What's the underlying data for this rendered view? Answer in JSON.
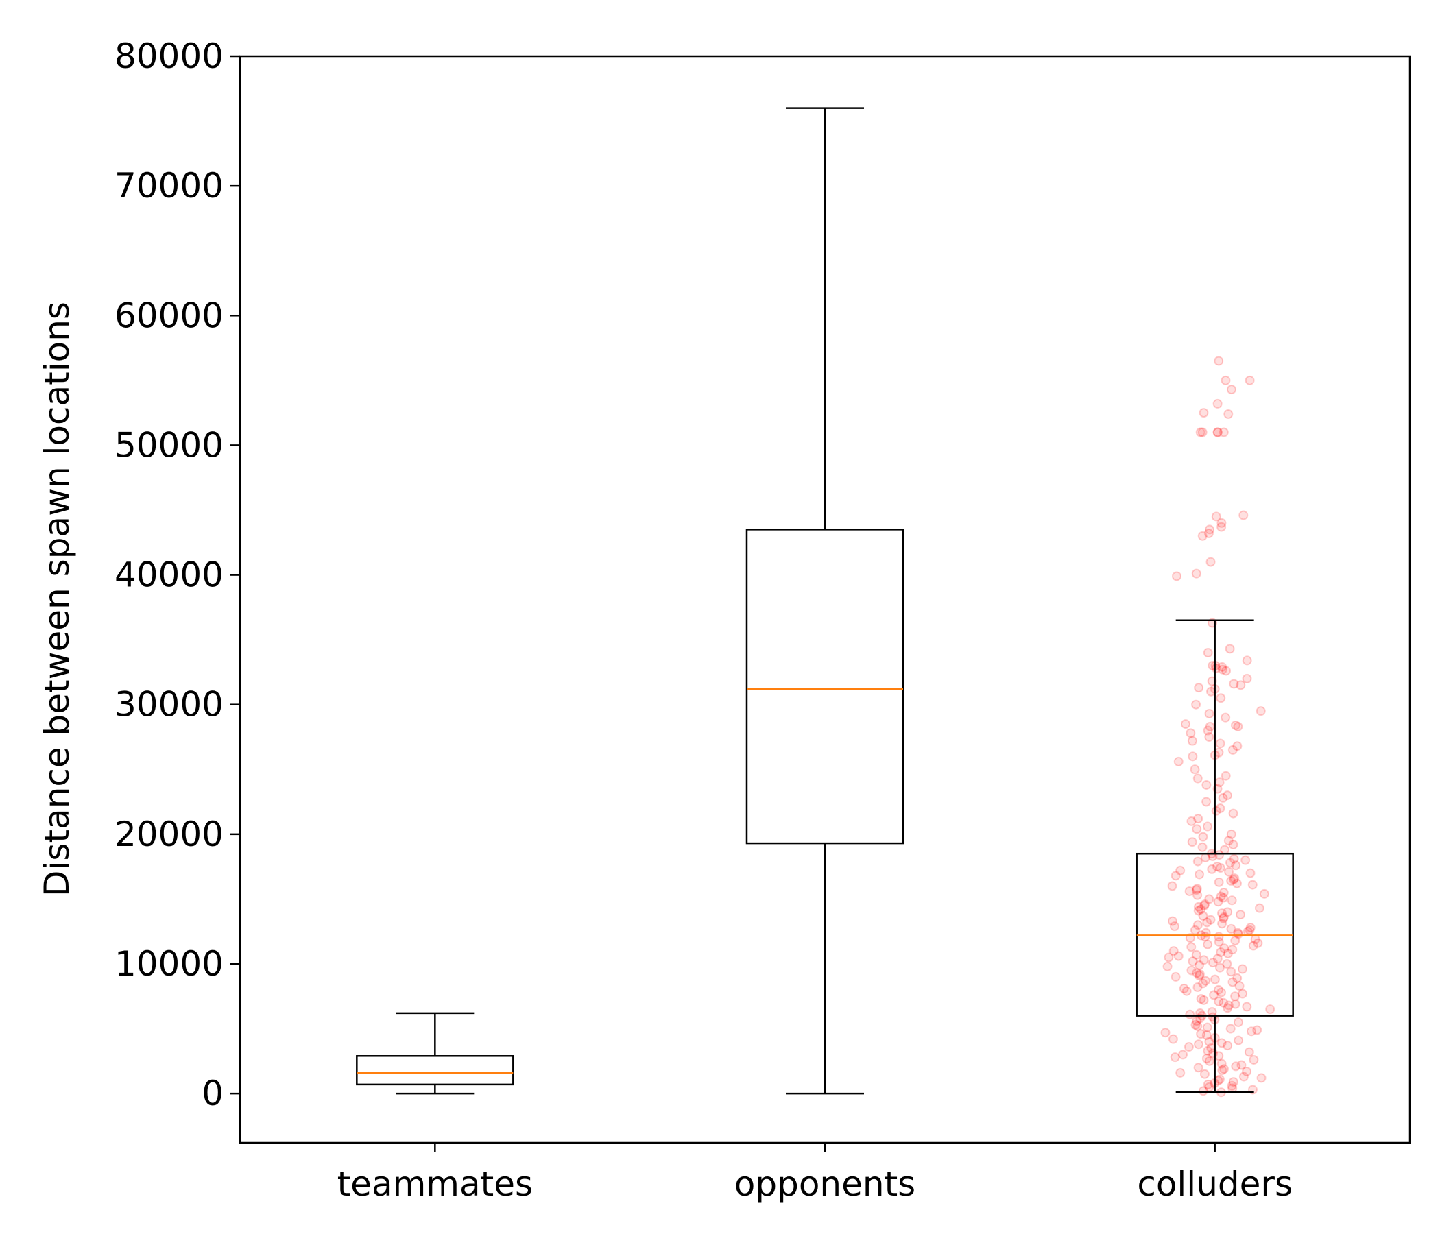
{
  "chart_data": {
    "type": "box",
    "title": "",
    "xlabel": "",
    "ylabel": "Distance between spawn locations",
    "ylim": [
      -3800,
      80000
    ],
    "yticks": [
      0,
      10000,
      20000,
      30000,
      40000,
      50000,
      60000,
      70000,
      80000
    ],
    "grid": false,
    "categories": [
      "teammates",
      "opponents",
      "colluders"
    ],
    "boxes": [
      {
        "category": "teammates",
        "whisker_low": 0,
        "q1": 700,
        "median": 1600,
        "q3": 2900,
        "whisker_high": 6200
      },
      {
        "category": "opponents",
        "whisker_low": 0,
        "q1": 19300,
        "median": 31200,
        "q3": 43500,
        "whisker_high": 76000
      },
      {
        "category": "colluders",
        "whisker_low": 100,
        "q1": 6000,
        "median": 12200,
        "q3": 18500,
        "whisker_high": 36500
      }
    ],
    "scatter": {
      "category": "colluders",
      "color": "#ff0000",
      "opacity": 0.12,
      "values": [
        56500,
        55000,
        55000,
        54300,
        53200,
        52500,
        52400,
        51000,
        51000,
        51000,
        51000,
        51000,
        44600,
        44500,
        44000,
        43700,
        43500,
        43200,
        43000,
        41000,
        40100,
        39900,
        36300,
        34300,
        34000,
        33000,
        33000,
        32900,
        32800,
        32700,
        32600,
        32000,
        31800,
        31500,
        31300,
        31200,
        31000,
        30500,
        30000,
        29500,
        29000,
        28500,
        28400,
        28300,
        28300,
        28000,
        27500,
        27200,
        27000,
        26800,
        26300,
        26100,
        26000,
        25600,
        25000,
        24500,
        24000,
        23800,
        23500,
        23000,
        22500,
        22000,
        21600,
        21200,
        21000,
        20600,
        20000,
        19800,
        19500,
        19200,
        19000,
        18800,
        18500,
        18300,
        18100,
        18000,
        17800,
        17600,
        17500,
        17300,
        17100,
        17000,
        16800,
        16600,
        16500,
        16300,
        16100,
        16000,
        15800,
        15600,
        15500,
        15300,
        15100,
        15000,
        14800,
        14600,
        14500,
        14300,
        14100,
        14000,
        13800,
        13600,
        13500,
        13300,
        13100,
        13000,
        12800,
        12600,
        12500,
        12400,
        12300,
        12200,
        12100,
        12000,
        11800,
        11600,
        11500,
        11300,
        11100,
        11000,
        10800,
        10600,
        10500,
        10300,
        10100,
        10000,
        9800,
        9600,
        9500,
        9300,
        9100,
        9000,
        8800,
        8600,
        8500,
        8300,
        8100,
        8000,
        7800,
        7600,
        7500,
        7300,
        7100,
        7000,
        6800,
        6600,
        6500,
        6300,
        6100,
        6000,
        5800,
        5600,
        5500,
        5300,
        5100,
        5000,
        4800,
        4600,
        4500,
        4300,
        4100,
        4000,
        3800,
        3600,
        3500,
        3300,
        3100,
        3000,
        2800,
        2600,
        2500,
        2300,
        2100,
        2000,
        1800,
        1600,
        1500,
        1300,
        1100,
        1000,
        800,
        600,
        500,
        300,
        100,
        12400,
        12900,
        11700,
        13700,
        10900,
        9900,
        14900,
        16900,
        8900,
        7900,
        15400,
        13200,
        11400,
        12700,
        10400,
        9400,
        16400,
        17400,
        6900,
        5900,
        4900,
        3900,
        2900,
        1900,
        900,
        17900,
        18400,
        15700,
        14400,
        13900,
        12100,
        11900,
        10700,
        9700,
        8700,
        7700,
        6700,
        5700,
        4700,
        3700,
        2700,
        1700,
        700,
        200,
        400,
        1200,
        2200,
        3200,
        4200,
        5200,
        6200,
        7200,
        8200,
        9200,
        10200,
        11200,
        12600,
        13400,
        14200,
        15200,
        16200,
        17200,
        18200,
        19400,
        20400,
        21800,
        22800,
        24300,
        26500,
        27800,
        29300,
        31600,
        33400
      ]
    }
  }
}
